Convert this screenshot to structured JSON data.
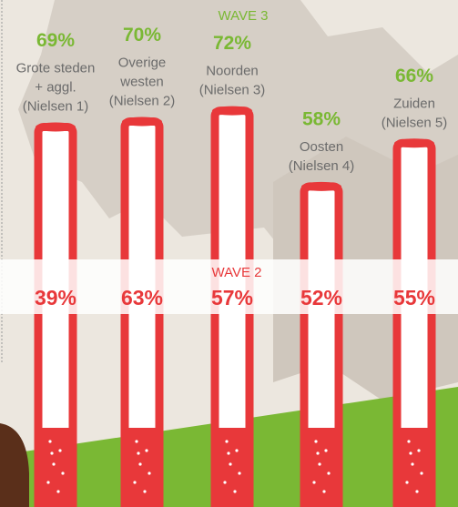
{
  "chart_data": {
    "type": "bar",
    "categories": [
      [
        "Grote steden",
        "+ aggl.",
        "(Nielsen 1)"
      ],
      [
        "Overige",
        "westen",
        "(Nielsen 2)"
      ],
      [
        "Noorden",
        "(Nielsen 3)"
      ],
      [
        "Oosten",
        "(Nielsen 4)"
      ],
      [
        "Zuiden",
        "(Nielsen 5)"
      ]
    ],
    "series": [
      {
        "name": "WAVE 3",
        "color": "#7ab834",
        "values": [
          69,
          70,
          72,
          58,
          66
        ],
        "value_labels": [
          "69%",
          "70%",
          "72%",
          "58%",
          "66%"
        ]
      },
      {
        "name": "WAVE 2",
        "color": "#e8383a",
        "values": [
          39,
          63,
          57,
          52,
          55
        ],
        "value_labels": [
          "39%",
          "63%",
          "57%",
          "52%",
          "55%"
        ]
      }
    ],
    "tube_color": "#e8383a"
  }
}
